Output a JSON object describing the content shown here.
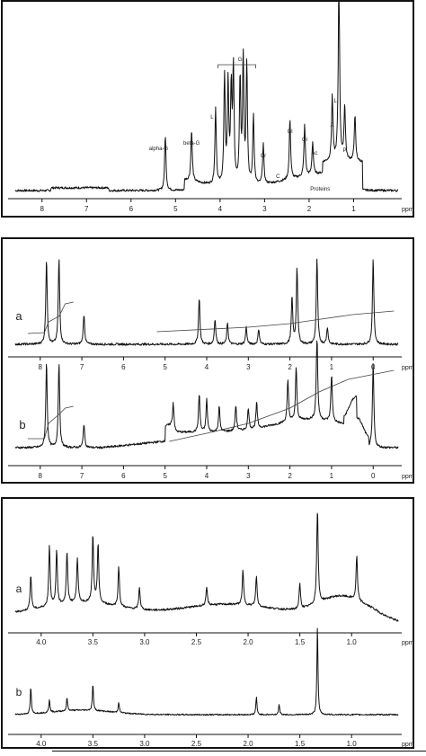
{
  "chart_data": [
    {
      "type": "line",
      "panel": "top",
      "x_unit": "ppm",
      "xlim": [
        8.6,
        0.0
      ],
      "xticks": [
        "8",
        "7",
        "6",
        "5",
        "4",
        "3",
        "2",
        "1"
      ],
      "peak_labels": [
        {
          "text": "alpha-G",
          "ppm": 5.22
        },
        {
          "text": "beta-G",
          "ppm": 4.64
        },
        {
          "text": "G",
          "ppm": 3.55
        },
        {
          "text": "L",
          "ppm": 4.1
        },
        {
          "text": "Cr",
          "ppm": 3.03
        },
        {
          "text": "Gl",
          "ppm": 2.43
        },
        {
          "text": "Gl",
          "ppm": 2.1
        },
        {
          "text": "Ac",
          "ppm": 1.92
        },
        {
          "text": "A",
          "ppm": 1.48
        },
        {
          "text": "L",
          "ppm": 1.33
        },
        {
          "text": "P",
          "ppm": 1.2
        },
        {
          "text": "C",
          "ppm": 2.7
        },
        {
          "text": "Proteins",
          "ppm": 1.75
        }
      ],
      "peaks": [
        {
          "ppm": 5.23,
          "h": 0.3
        },
        {
          "ppm": 4.64,
          "h": 0.28
        },
        {
          "ppm": 4.1,
          "h": 0.42
        },
        {
          "ppm": 3.9,
          "h": 0.58
        },
        {
          "ppm": 3.82,
          "h": 0.55
        },
        {
          "ppm": 3.75,
          "h": 0.5
        },
        {
          "ppm": 3.7,
          "h": 0.62
        },
        {
          "ppm": 3.55,
          "h": 0.57
        },
        {
          "ppm": 3.48,
          "h": 0.68
        },
        {
          "ppm": 3.4,
          "h": 0.65
        },
        {
          "ppm": 3.25,
          "h": 0.38
        },
        {
          "ppm": 3.03,
          "h": 0.22
        },
        {
          "ppm": 2.43,
          "h": 0.33
        },
        {
          "ppm": 2.1,
          "h": 0.28
        },
        {
          "ppm": 1.92,
          "h": 0.18
        },
        {
          "ppm": 1.48,
          "h": 0.35
        },
        {
          "ppm": 1.33,
          "h": 1.0
        },
        {
          "ppm": 1.2,
          "h": 0.3
        },
        {
          "ppm": 0.97,
          "h": 0.25
        }
      ]
    },
    {
      "type": "line",
      "panel": "middle",
      "x_unit": "ppm",
      "xlim": [
        8.6,
        -0.6
      ],
      "xticks": [
        "8",
        "7",
        "6",
        "5",
        "4",
        "3",
        "2",
        "1",
        "0"
      ],
      "trace_labels": [
        "a",
        "b"
      ],
      "peaks_a": [
        {
          "ppm": 7.85,
          "h": 1.0
        },
        {
          "ppm": 7.55,
          "h": 1.0
        },
        {
          "ppm": 6.95,
          "h": 0.35
        },
        {
          "ppm": 4.18,
          "h": 0.55
        },
        {
          "ppm": 3.8,
          "h": 0.3
        },
        {
          "ppm": 3.5,
          "h": 0.25
        },
        {
          "ppm": 3.05,
          "h": 0.2
        },
        {
          "ppm": 2.75,
          "h": 0.18
        },
        {
          "ppm": 1.95,
          "h": 0.55
        },
        {
          "ppm": 1.83,
          "h": 0.9
        },
        {
          "ppm": 1.35,
          "h": 1.0
        },
        {
          "ppm": 1.1,
          "h": 0.2
        },
        {
          "ppm": 0.0,
          "h": 1.0
        }
      ],
      "peaks_b": [
        {
          "ppm": 7.85,
          "h": 1.0
        },
        {
          "ppm": 7.55,
          "h": 1.0
        },
        {
          "ppm": 6.95,
          "h": 0.28
        },
        {
          "ppm": 4.8,
          "h": 0.3
        },
        {
          "ppm": 4.18,
          "h": 0.45
        },
        {
          "ppm": 4.0,
          "h": 0.38
        },
        {
          "ppm": 3.7,
          "h": 0.3
        },
        {
          "ppm": 3.3,
          "h": 0.3
        },
        {
          "ppm": 3.0,
          "h": 0.25
        },
        {
          "ppm": 2.8,
          "h": 0.3
        },
        {
          "ppm": 2.05,
          "h": 0.48
        },
        {
          "ppm": 1.85,
          "h": 0.62
        },
        {
          "ppm": 1.35,
          "h": 1.0
        },
        {
          "ppm": 1.0,
          "h": 0.55
        },
        {
          "ppm": 0.0,
          "h": 1.0
        }
      ]
    },
    {
      "type": "line",
      "panel": "bottom",
      "x_unit": "ppm",
      "xlim": [
        4.25,
        0.55
      ],
      "xticks": [
        "4.0",
        "3.5",
        "3.0",
        "2.5",
        "2.0",
        "1.5",
        "1.0"
      ],
      "trace_labels": [
        "a",
        "b"
      ],
      "peaks_a": [
        {
          "ppm": 4.1,
          "h": 0.35
        },
        {
          "ppm": 3.92,
          "h": 0.62
        },
        {
          "ppm": 3.85,
          "h": 0.55
        },
        {
          "ppm": 3.75,
          "h": 0.52
        },
        {
          "ppm": 3.65,
          "h": 0.45
        },
        {
          "ppm": 3.5,
          "h": 0.68
        },
        {
          "ppm": 3.45,
          "h": 0.6
        },
        {
          "ppm": 3.25,
          "h": 0.4
        },
        {
          "ppm": 3.05,
          "h": 0.22
        },
        {
          "ppm": 2.4,
          "h": 0.18
        },
        {
          "ppm": 2.05,
          "h": 0.35
        },
        {
          "ppm": 1.92,
          "h": 0.3
        },
        {
          "ppm": 1.5,
          "h": 0.25
        },
        {
          "ppm": 1.33,
          "h": 1.0
        },
        {
          "ppm": 0.95,
          "h": 0.45
        }
      ],
      "peaks_b": [
        {
          "ppm": 4.1,
          "h": 0.3
        },
        {
          "ppm": 3.92,
          "h": 0.15
        },
        {
          "ppm": 3.75,
          "h": 0.15
        },
        {
          "ppm": 3.5,
          "h": 0.3
        },
        {
          "ppm": 3.25,
          "h": 0.12
        },
        {
          "ppm": 1.92,
          "h": 0.2
        },
        {
          "ppm": 1.7,
          "h": 0.12
        },
        {
          "ppm": 1.33,
          "h": 1.0
        }
      ]
    }
  ]
}
